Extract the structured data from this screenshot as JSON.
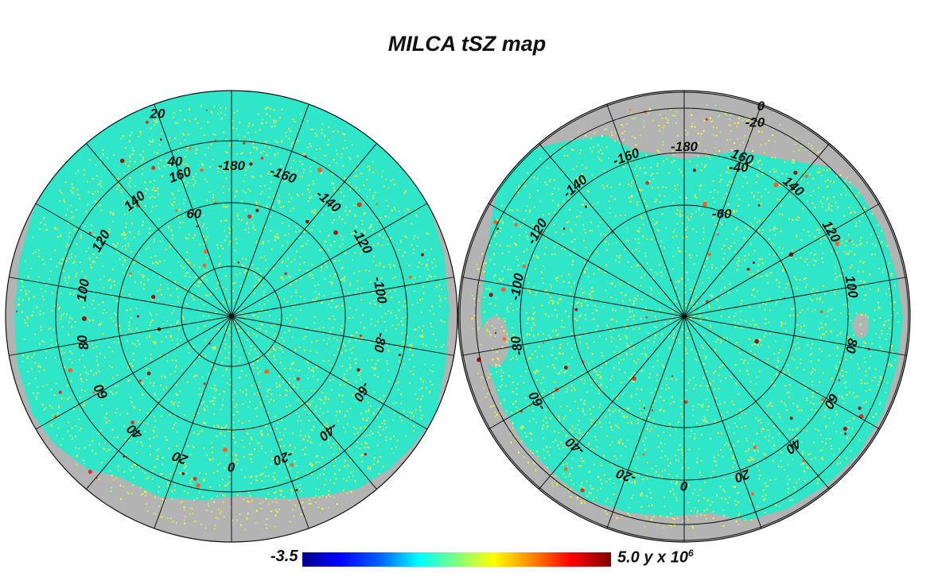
{
  "title": "MILCA tSZ map",
  "colorbar": {
    "min": "-3.5",
    "max_value": "5.0 y x 10",
    "max_exponent": "6",
    "colors": [
      "#00008f",
      "#0000ff",
      "#0060ff",
      "#00ffff",
      "#7fff7f",
      "#ffff00",
      "#ff7f00",
      "#ff0000",
      "#800000"
    ]
  },
  "colors": {
    "mask": "#b3b3b3",
    "background_field": "#2fe6c8",
    "grid": "#111111"
  },
  "north_hemisphere": {
    "longitude_labels": [
      "-180",
      "160",
      "140",
      "120",
      "100",
      "80",
      "60",
      "40",
      "20",
      "0",
      "-20",
      "-40",
      "-60",
      "-80",
      "-100",
      "-120",
      "-140",
      "-160"
    ],
    "latitude_labels": [
      "20",
      "40",
      "60"
    ]
  },
  "south_hemisphere": {
    "longitude_labels": [
      "-180",
      "-160",
      "-140",
      "-120",
      "-100",
      "-80",
      "-60",
      "-40",
      "-20",
      "0",
      "20",
      "40",
      "60",
      "80",
      "100",
      "120",
      "140",
      "160"
    ],
    "latitude_labels": [
      "0",
      "-20",
      "-40",
      "-60"
    ]
  }
}
